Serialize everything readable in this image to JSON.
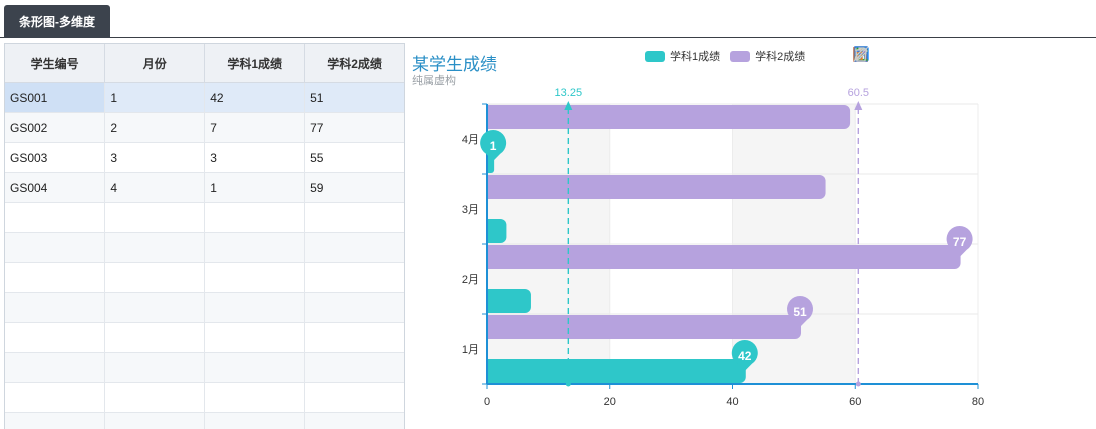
{
  "tab": {
    "label": "条形图-多维度"
  },
  "grid": {
    "columns": [
      "学生编号",
      "月份",
      "学科1成绩",
      "学科2成绩"
    ],
    "rows": [
      {
        "id": "GS001",
        "month": "1",
        "score1": "42",
        "score2": "51"
      },
      {
        "id": "GS002",
        "month": "2",
        "score1": "7",
        "score2": "77"
      },
      {
        "id": "GS003",
        "month": "3",
        "score1": "3",
        "score2": "55"
      },
      {
        "id": "GS004",
        "month": "4",
        "score1": "1",
        "score2": "59"
      }
    ],
    "empty_rows": 8
  },
  "toolbox_icons": [
    "save-icon",
    "refresh-icon",
    "line-chart-icon",
    "bar-chart-icon",
    "data-view-icon",
    "mark-pen-icon",
    "mark-undo-icon",
    "mark-clear-icon"
  ],
  "chart_data": {
    "type": "bar",
    "orientation": "horizontal",
    "title": "某学生成绩",
    "subtitle": "纯属虚构",
    "categories": [
      "1月",
      "2月",
      "3月",
      "4月"
    ],
    "series": [
      {
        "name": "学科1成绩",
        "values": [
          42,
          7,
          3,
          1
        ],
        "color": "#2ec7c9",
        "max_point": {
          "category": "1月",
          "value": 42
        },
        "min_point": {
          "category": "4月",
          "value": 1
        },
        "average": 13.25
      },
      {
        "name": "学科2成绩",
        "values": [
          51,
          77,
          55,
          59
        ],
        "color": "#b6a2de",
        "max_point": {
          "category": "2月",
          "value": 77
        },
        "min_point": {
          "category": "1月",
          "value": 51
        },
        "average": 60.5
      }
    ],
    "x_ticks": [
      0,
      20,
      40,
      60,
      80
    ],
    "xlim": [
      0,
      80
    ],
    "legend": "top",
    "grid": true
  }
}
